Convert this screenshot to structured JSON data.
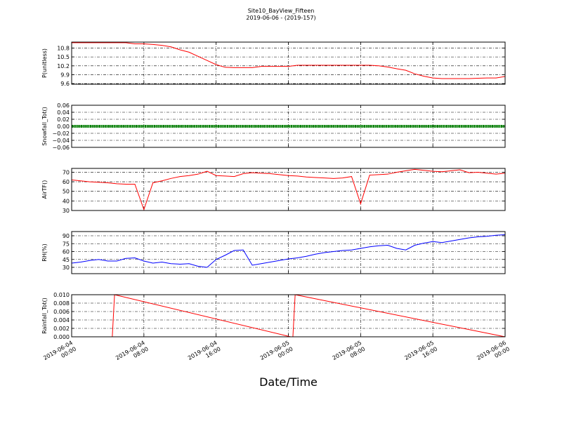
{
  "title": "Site10_BayView_Fifteen",
  "subtitle": "2019-06-06 - (2019-157)",
  "chart_data": [
    {
      "type": "line",
      "ylabel": "P(unitless)",
      "color": "#ff0000",
      "ylim": [
        9.58,
        11.0
      ],
      "yticks": [
        9.6,
        9.9,
        10.2,
        10.5,
        10.8
      ],
      "grid": true,
      "x": [
        "2019-06-04 00:00",
        "2019-06-04 01:00",
        "2019-06-04 02:00",
        "2019-06-04 03:00",
        "2019-06-04 04:00",
        "2019-06-04 05:00",
        "2019-06-04 06:00",
        "2019-06-04 07:00",
        "2019-06-04 08:00",
        "2019-06-04 09:00",
        "2019-06-04 10:00",
        "2019-06-04 11:00",
        "2019-06-04 12:00",
        "2019-06-04 13:00",
        "2019-06-04 14:00",
        "2019-06-04 15:00",
        "2019-06-04 16:00",
        "2019-06-04 17:00",
        "2019-06-04 18:00",
        "2019-06-04 19:00",
        "2019-06-04 20:00",
        "2019-06-04 21:00",
        "2019-06-04 22:00",
        "2019-06-04 23:00",
        "2019-06-05 00:00",
        "2019-06-05 01:00",
        "2019-06-05 02:00",
        "2019-06-05 03:00",
        "2019-06-05 04:00",
        "2019-06-05 05:00",
        "2019-06-05 06:00",
        "2019-06-05 07:00",
        "2019-06-05 08:00",
        "2019-06-05 09:00",
        "2019-06-05 10:00",
        "2019-06-05 11:00",
        "2019-06-05 12:00",
        "2019-06-05 13:00",
        "2019-06-05 14:00",
        "2019-06-05 15:00",
        "2019-06-05 16:00",
        "2019-06-05 17:00",
        "2019-06-05 18:00",
        "2019-06-05 19:00",
        "2019-06-05 20:00",
        "2019-06-05 21:00",
        "2019-06-05 22:00",
        "2019-06-05 23:00",
        "2019-06-06 00:00"
      ],
      "values": [
        10.98,
        10.98,
        10.98,
        10.98,
        10.98,
        10.98,
        10.98,
        10.94,
        10.94,
        10.92,
        10.89,
        10.84,
        10.74,
        10.66,
        10.52,
        10.38,
        10.24,
        10.15,
        10.14,
        10.14,
        10.14,
        10.18,
        10.18,
        10.18,
        10.18,
        10.22,
        10.22,
        10.22,
        10.22,
        10.22,
        10.22,
        10.22,
        10.22,
        10.22,
        10.2,
        10.16,
        10.1,
        10.05,
        9.93,
        9.85,
        9.79,
        9.77,
        9.77,
        9.77,
        9.77,
        9.78,
        9.79,
        9.79,
        9.84
      ]
    },
    {
      "type": "line",
      "ylabel": "Snowfall_Tot()",
      "color": "#008000",
      "ylim": [
        -0.06,
        0.06
      ],
      "yticks": [
        {
          "value": -0.06,
          "label": "−0.06"
        },
        {
          "value": -0.04,
          "label": "−0.04"
        },
        {
          "value": -0.02,
          "label": "−0.02"
        },
        {
          "value": 0,
          "label": "0.00"
        },
        0.02,
        0.04,
        0.06
      ],
      "grid": true,
      "x": [
        "2019-06-04 00:00",
        "2019-06-04 02:00",
        "2019-06-04 04:00",
        "2019-06-04 06:00",
        "2019-06-04 08:00",
        "2019-06-04 10:00",
        "2019-06-04 12:00",
        "2019-06-04 14:00",
        "2019-06-04 16:00",
        "2019-06-04 18:00",
        "2019-06-04 20:00",
        "2019-06-04 22:00",
        "2019-06-05 00:00",
        "2019-06-05 02:00",
        "2019-06-05 04:00",
        "2019-06-05 06:00",
        "2019-06-05 08:00",
        "2019-06-05 10:00",
        "2019-06-05 12:00",
        "2019-06-05 14:00",
        "2019-06-05 16:00",
        "2019-06-05 18:00",
        "2019-06-05 20:00",
        "2019-06-05 22:00",
        "2019-06-06 00:00"
      ],
      "values": [
        0,
        0,
        0,
        0,
        0,
        0,
        0,
        0,
        0,
        0,
        0,
        0,
        0,
        0,
        0,
        0,
        0,
        0,
        0,
        0,
        0,
        0,
        0,
        0,
        0
      ]
    },
    {
      "type": "line",
      "ylabel": "AirTF()",
      "color": "#ff0000",
      "ylim": [
        30,
        74
      ],
      "yticks": [
        30,
        40,
        50,
        60,
        70
      ],
      "grid": true,
      "x": [
        "2019-06-04 00:00",
        "2019-06-04 01:00",
        "2019-06-04 02:00",
        "2019-06-04 03:00",
        "2019-06-04 04:00",
        "2019-06-04 05:00",
        "2019-06-04 06:00",
        "2019-06-04 07:00",
        "2019-06-04 08:00",
        "2019-06-04 09:00",
        "2019-06-04 10:00",
        "2019-06-04 11:00",
        "2019-06-04 12:00",
        "2019-06-04 13:00",
        "2019-06-04 14:00",
        "2019-06-04 15:00",
        "2019-06-04 16:00",
        "2019-06-04 17:00",
        "2019-06-04 18:00",
        "2019-06-04 19:00",
        "2019-06-04 20:00",
        "2019-06-04 21:00",
        "2019-06-04 22:00",
        "2019-06-04 23:00",
        "2019-06-05 00:00",
        "2019-06-05 01:00",
        "2019-06-05 02:00",
        "2019-06-05 03:00",
        "2019-06-05 04:00",
        "2019-06-05 05:00",
        "2019-06-05 06:00",
        "2019-06-05 07:00",
        "2019-06-05 08:00",
        "2019-06-05 09:00",
        "2019-06-05 10:00",
        "2019-06-05 11:00",
        "2019-06-05 12:00",
        "2019-06-05 13:00",
        "2019-06-05 14:00",
        "2019-06-05 15:00",
        "2019-06-05 16:00",
        "2019-06-05 17:00",
        "2019-06-05 18:00",
        "2019-06-05 19:00",
        "2019-06-05 20:00",
        "2019-06-05 21:00",
        "2019-06-05 22:00",
        "2019-06-05 23:00",
        "2019-06-06 00:00"
      ],
      "values": [
        62,
        61,
        60,
        59.5,
        59,
        58,
        57.5,
        57.5,
        31,
        59,
        61,
        63.5,
        65.5,
        66.5,
        68,
        71,
        66.5,
        66,
        65.5,
        68.5,
        69.5,
        69,
        68.5,
        67.5,
        66.5,
        66,
        65,
        64.5,
        64,
        63.5,
        64,
        65.5,
        37,
        67,
        67.5,
        68,
        70,
        71.5,
        73,
        72,
        71,
        70.5,
        71.5,
        72.5,
        69.5,
        70,
        69,
        68,
        69
      ]
    },
    {
      "type": "line",
      "ylabel": "RH(%)",
      "color": "#0000ff",
      "ylim": [
        18,
        98
      ],
      "yticks": [
        30,
        45,
        60,
        75,
        90
      ],
      "grid": true,
      "x": [
        "2019-06-04 00:00",
        "2019-06-04 01:00",
        "2019-06-04 02:00",
        "2019-06-04 03:00",
        "2019-06-04 04:00",
        "2019-06-04 05:00",
        "2019-06-04 06:00",
        "2019-06-04 07:00",
        "2019-06-04 08:00",
        "2019-06-04 09:00",
        "2019-06-04 10:00",
        "2019-06-04 11:00",
        "2019-06-04 12:00",
        "2019-06-04 13:00",
        "2019-06-04 14:00",
        "2019-06-04 15:00",
        "2019-06-04 16:00",
        "2019-06-04 17:00",
        "2019-06-04 18:00",
        "2019-06-04 19:00",
        "2019-06-04 20:00",
        "2019-06-04 21:00",
        "2019-06-04 22:00",
        "2019-06-04 23:00",
        "2019-06-05 00:00",
        "2019-06-05 01:00",
        "2019-06-05 02:00",
        "2019-06-05 03:00",
        "2019-06-05 04:00",
        "2019-06-05 05:00",
        "2019-06-05 06:00",
        "2019-06-05 07:00",
        "2019-06-05 08:00",
        "2019-06-05 09:00",
        "2019-06-05 10:00",
        "2019-06-05 11:00",
        "2019-06-05 12:00",
        "2019-06-05 13:00",
        "2019-06-05 14:00",
        "2019-06-05 15:00",
        "2019-06-05 16:00",
        "2019-06-05 17:00",
        "2019-06-05 18:00",
        "2019-06-05 19:00",
        "2019-06-05 20:00",
        "2019-06-05 21:00",
        "2019-06-05 22:00",
        "2019-06-05 23:00",
        "2019-06-06 00:00"
      ],
      "values": [
        38,
        40,
        43,
        45,
        42,
        42,
        47,
        48,
        42,
        38,
        40,
        37,
        36,
        37,
        32,
        30,
        45,
        53,
        62,
        63,
        34,
        37,
        40,
        43,
        46,
        48,
        51,
        55,
        58,
        60,
        62,
        63,
        66,
        69,
        71,
        72,
        66,
        63,
        72,
        76,
        79,
        77,
        80,
        83,
        86,
        88,
        89,
        91,
        92
      ]
    },
    {
      "type": "line",
      "ylabel": "Rainfall_Tot()",
      "xlabel": "Date/Time",
      "color": "#ff0000",
      "ylim": [
        0,
        0.01
      ],
      "yticks": [
        {
          "value": 0,
          "label": "0.000"
        },
        {
          "value": 0.002,
          "label": "0.002"
        },
        {
          "value": 0.004,
          "label": "0.004"
        },
        {
          "value": 0.006,
          "label": "0.006"
        },
        {
          "value": 0.008,
          "label": "0.008"
        },
        {
          "value": 0.01,
          "label": "0.010"
        }
      ],
      "grid": true,
      "xlim": [
        "2019-06-04 00:00",
        "2019-06-06 00:00"
      ],
      "xticks": [
        "2019-06-04 00:00",
        "2019-06-04 08:00",
        "2019-06-04 16:00",
        "2019-06-05 00:00",
        "2019-06-05 08:00",
        "2019-06-05 16:00",
        "2019-06-06 00:00"
      ],
      "x": [
        "2019-06-04 00:00",
        "2019-06-04 04:15",
        "2019-06-04 04:30",
        "2019-06-04 04:45",
        "2019-06-05 00:15",
        "2019-06-05 00:30",
        "2019-06-05 00:45",
        "2019-06-06 00:00"
      ],
      "values": [
        0,
        0,
        0,
        0.01,
        0,
        0,
        0.01,
        0
      ]
    }
  ]
}
